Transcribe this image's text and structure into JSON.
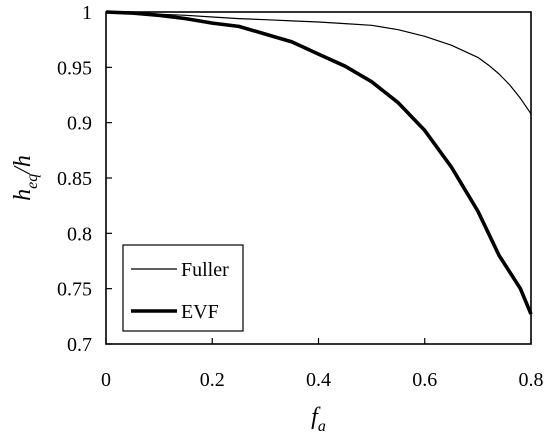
{
  "chart_data": {
    "type": "line",
    "title": "",
    "xlabel": "f",
    "xlabel_sub": "a",
    "ylabel": "h",
    "ylabel_sub": "eq",
    "ylabel_suffix": "/h",
    "xlim": [
      0,
      0.8
    ],
    "ylim": [
      0.7,
      1.0
    ],
    "xticks": [
      0,
      0.2,
      0.4,
      0.6,
      0.8
    ],
    "yticks": [
      0.7,
      0.75,
      0.8,
      0.85,
      0.9,
      0.95,
      1
    ],
    "xtick_labels": [
      "0",
      "0.2",
      "0.4",
      "0.6",
      "0.8"
    ],
    "ytick_labels": [
      "0.7",
      "0.75",
      "0.8",
      "0.85",
      "0.9",
      "0.95",
      "1"
    ],
    "grid": false,
    "legend_position": "bottom-left",
    "series": [
      {
        "name": "Fuller",
        "line_width": "thin",
        "x": [
          0,
          0.05,
          0.1,
          0.15,
          0.2,
          0.25,
          0.3,
          0.35,
          0.4,
          0.45,
          0.5,
          0.55,
          0.6,
          0.65,
          0.7,
          0.72,
          0.74,
          0.76,
          0.78,
          0.8
        ],
        "y": [
          1.0,
          0.9995,
          0.998,
          0.997,
          0.9955,
          0.994,
          0.993,
          0.992,
          0.991,
          0.9895,
          0.988,
          0.984,
          0.978,
          0.97,
          0.959,
          0.952,
          0.944,
          0.934,
          0.922,
          0.908
        ]
      },
      {
        "name": "EVF",
        "line_width": "thick",
        "x": [
          0,
          0.05,
          0.1,
          0.15,
          0.2,
          0.25,
          0.3,
          0.35,
          0.4,
          0.45,
          0.5,
          0.55,
          0.6,
          0.65,
          0.7,
          0.72,
          0.74,
          0.76,
          0.78,
          0.8
        ],
        "y": [
          1.0,
          0.999,
          0.997,
          0.994,
          0.99,
          0.987,
          0.98,
          0.973,
          0.962,
          0.951,
          0.937,
          0.918,
          0.893,
          0.86,
          0.82,
          0.8,
          0.78,
          0.765,
          0.75,
          0.727
        ]
      }
    ]
  }
}
